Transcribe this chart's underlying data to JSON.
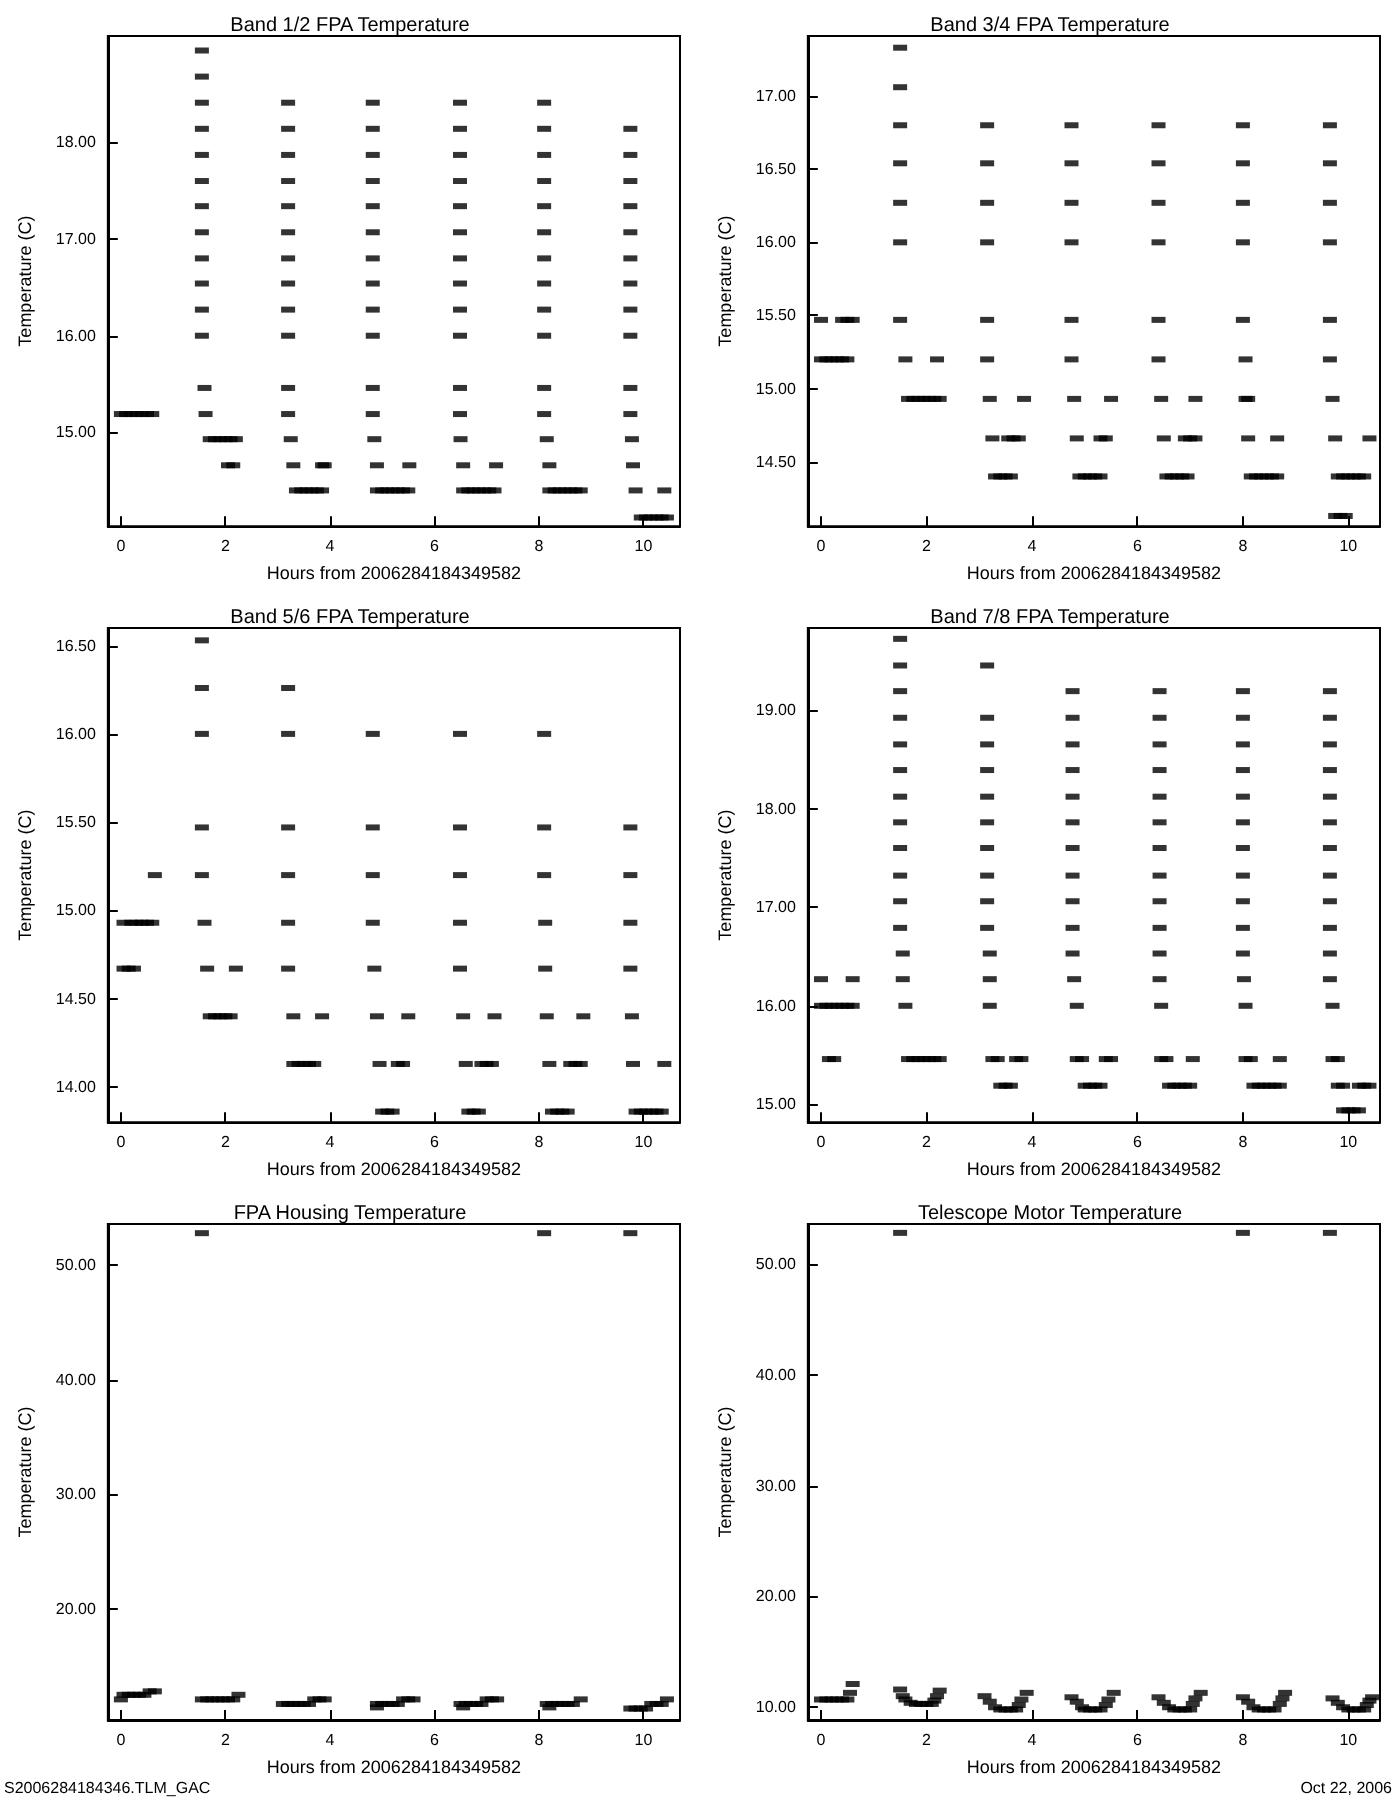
{
  "chart_data": [
    {
      "type": "scatter",
      "title": "Band 1/2 FPA Temperature",
      "xlabel": "Hours from 2006284184349582",
      "ylabel": "Temperature (C)",
      "marker": "square",
      "grid": false,
      "xlim": [
        -0.25,
        10.7
      ],
      "xticks": [
        0,
        2,
        4,
        6,
        8,
        10
      ],
      "ylim": [
        14.03,
        19.1
      ],
      "yticks": [
        {
          "value": 15,
          "label": "15.00"
        },
        {
          "value": 16,
          "label": "16.00"
        },
        {
          "value": 17,
          "label": "17.00"
        },
        {
          "value": 18,
          "label": "18.00"
        }
      ],
      "series": [
        {
          "color": "#000000",
          "x": [
            0,
            0.1,
            0.2,
            0.3,
            0.4,
            0.5,
            0.6,
            1.55,
            1.55,
            1.55,
            1.55,
            1.55,
            1.55,
            1.55,
            1.55,
            1.55,
            1.55,
            1.55,
            1.55,
            1.6,
            1.62,
            1.7,
            1.8,
            1.9,
            2.0,
            2.1,
            2.2,
            2.05,
            2.15,
            3.2,
            3.2,
            3.2,
            3.2,
            3.2,
            3.2,
            3.2,
            3.2,
            3.2,
            3.2,
            3.2,
            3.2,
            3.25,
            3.3,
            3.85,
            3.9,
            3.35,
            3.45,
            3.55,
            3.65,
            3.75,
            3.85,
            4.82,
            4.82,
            4.82,
            4.82,
            4.82,
            4.82,
            4.82,
            4.82,
            4.82,
            4.82,
            4.82,
            4.82,
            4.85,
            4.9,
            5.52,
            4.9,
            5.0,
            5.1,
            5.2,
            5.3,
            5.4,
            5.5,
            6.49,
            6.49,
            6.49,
            6.49,
            6.49,
            6.49,
            6.49,
            6.49,
            6.49,
            6.49,
            6.49,
            6.49,
            6.5,
            6.55,
            7.18,
            6.55,
            6.65,
            6.75,
            6.85,
            6.95,
            7.05,
            7.15,
            8.1,
            8.1,
            8.1,
            8.1,
            8.1,
            8.1,
            8.1,
            8.1,
            8.1,
            8.1,
            8.1,
            8.1,
            8.15,
            8.2,
            8.2,
            8.3,
            8.4,
            8.5,
            8.6,
            8.7,
            8.8,
            9.75,
            9.75,
            9.75,
            9.75,
            9.75,
            9.75,
            9.75,
            9.75,
            9.75,
            9.75,
            9.75,
            9.78,
            9.8,
            9.85,
            10.4,
            9.95,
            10.05,
            10.15,
            10.25,
            10.35,
            10.45
          ],
          "values": [
            15.19,
            15.19,
            15.19,
            15.19,
            15.19,
            15.19,
            15.19,
            18.95,
            18.68,
            18.41,
            18.14,
            17.87,
            17.6,
            17.34,
            17.07,
            16.8,
            16.54,
            16.27,
            16.0,
            15.46,
            15.19,
            14.93,
            14.93,
            14.93,
            14.93,
            14.93,
            14.93,
            14.66,
            14.66,
            18.41,
            18.14,
            17.87,
            17.6,
            17.34,
            17.07,
            16.8,
            16.54,
            16.27,
            16.0,
            15.46,
            15.19,
            14.93,
            14.66,
            14.66,
            14.66,
            14.4,
            14.4,
            14.4,
            14.4,
            14.4,
            14.4,
            18.41,
            18.14,
            17.87,
            17.6,
            17.34,
            17.07,
            16.8,
            16.54,
            16.27,
            16.0,
            15.46,
            15.19,
            14.93,
            14.66,
            14.66,
            14.4,
            14.4,
            14.4,
            14.4,
            14.4,
            14.4,
            14.4,
            18.41,
            18.14,
            17.87,
            17.6,
            17.34,
            17.07,
            16.8,
            16.54,
            16.27,
            16.0,
            15.46,
            15.19,
            14.93,
            14.66,
            14.66,
            14.4,
            14.4,
            14.4,
            14.4,
            14.4,
            14.4,
            14.4,
            18.41,
            18.14,
            17.87,
            17.6,
            17.34,
            17.07,
            16.8,
            16.54,
            16.27,
            16.0,
            15.46,
            15.19,
            14.93,
            14.66,
            14.4,
            14.4,
            14.4,
            14.4,
            14.4,
            14.4,
            14.4,
            18.14,
            17.87,
            17.6,
            17.34,
            17.07,
            16.8,
            16.54,
            16.27,
            16.0,
            15.46,
            15.19,
            14.93,
            14.66,
            14.4,
            14.4,
            14.12,
            14.12,
            14.12,
            14.12,
            14.12,
            14.12
          ]
        }
      ]
    },
    {
      "type": "scatter",
      "title": "Band 3/4 FPA Temperature",
      "xlabel": "Hours from 2006284184349582",
      "ylabel": "Temperature (C)",
      "marker": "square",
      "grid": false,
      "xlim": [
        -0.25,
        10.6
      ],
      "xticks": [
        0,
        2,
        4,
        6,
        8,
        10
      ],
      "ylim": [
        14.06,
        17.41
      ],
      "yticks": [
        {
          "value": 14.5,
          "label": "14.50"
        },
        {
          "value": 15,
          "label": "15.00"
        },
        {
          "value": 15.5,
          "label": "15.50"
        },
        {
          "value": 16,
          "label": "16.00"
        },
        {
          "value": 16.5,
          "label": "16.50"
        },
        {
          "value": 17,
          "label": "17.00"
        }
      ],
      "series": [
        {
          "color": "#000000",
          "x": [
            0,
            0.4,
            0.5,
            0.6,
            0,
            0.1,
            0.2,
            0.3,
            0.4,
            0.5,
            1.5,
            1.5,
            1.5,
            1.5,
            1.5,
            1.5,
            1.5,
            1.6,
            1.65,
            1.75,
            1.85,
            1.95,
            2.05,
            2.15,
            2.25,
            2.2,
            3.15,
            3.15,
            3.15,
            3.15,
            3.15,
            3.15,
            3.2,
            3.25,
            3.55,
            3.65,
            3.75,
            3.85,
            3.3,
            3.4,
            3.5,
            3.6,
            4.75,
            4.75,
            4.75,
            4.75,
            4.75,
            4.75,
            4.8,
            4.85,
            5.3,
            5.4,
            5.5,
            4.9,
            5.0,
            5.1,
            5.2,
            5.3,
            6.4,
            6.4,
            6.4,
            6.4,
            6.4,
            6.4,
            6.45,
            6.5,
            7.1,
            6.9,
            7.0,
            7.1,
            6.55,
            6.65,
            6.75,
            6.85,
            6.95,
            8.0,
            8.0,
            8.0,
            8.0,
            8.0,
            8.05,
            8.05,
            8.1,
            8.1,
            8.65,
            8.15,
            8.25,
            8.35,
            8.45,
            8.55,
            8.65,
            9.65,
            9.65,
            9.65,
            9.65,
            9.65,
            9.65,
            9.7,
            9.75,
            9.8,
            9.9,
            10.0,
            10.1,
            10.2,
            10.3,
            10.4,
            9.75,
            9.85,
            9.95
          ],
          "values": [
            15.47,
            15.47,
            15.47,
            15.47,
            15.2,
            15.2,
            15.2,
            15.2,
            15.2,
            15.2,
            17.33,
            17.06,
            16.8,
            16.54,
            16.27,
            16.0,
            15.47,
            15.2,
            14.93,
            14.93,
            14.93,
            14.93,
            14.93,
            14.93,
            14.93,
            15.2,
            16.8,
            16.54,
            16.27,
            16.0,
            15.47,
            15.2,
            14.93,
            14.66,
            14.66,
            14.66,
            14.66,
            14.93,
            14.4,
            14.4,
            14.4,
            14.4,
            16.8,
            16.54,
            16.27,
            16.0,
            15.47,
            15.2,
            14.93,
            14.66,
            14.66,
            14.66,
            14.93,
            14.4,
            14.4,
            14.4,
            14.4,
            14.4,
            16.8,
            16.54,
            16.27,
            16.0,
            15.47,
            15.2,
            14.93,
            14.66,
            14.93,
            14.66,
            14.66,
            14.66,
            14.4,
            14.4,
            14.4,
            14.4,
            14.4,
            16.8,
            16.54,
            16.27,
            16.0,
            15.47,
            15.2,
            14.93,
            14.93,
            14.66,
            14.66,
            14.4,
            14.4,
            14.4,
            14.4,
            14.4,
            14.4,
            16.8,
            16.54,
            16.27,
            16.0,
            15.47,
            15.2,
            14.93,
            14.66,
            14.4,
            14.4,
            14.4,
            14.4,
            14.4,
            14.4,
            14.66,
            14.13,
            14.13,
            14.13
          ]
        }
      ]
    },
    {
      "type": "scatter",
      "title": "Band 5/6 FPA Temperature",
      "xlabel": "Hours from 2006284184349582",
      "ylabel": "Temperature (C)",
      "marker": "square",
      "grid": false,
      "xlim": [
        -0.25,
        10.7
      ],
      "xticks": [
        0,
        2,
        4,
        6,
        8,
        10
      ],
      "ylim": [
        13.8,
        16.6
      ],
      "yticks": [
        {
          "value": 14,
          "label": "14.00"
        },
        {
          "value": 14.5,
          "label": "14.50"
        },
        {
          "value": 15,
          "label": "15.00"
        },
        {
          "value": 15.5,
          "label": "15.50"
        },
        {
          "value": 16,
          "label": "16.00"
        },
        {
          "value": 16.5,
          "label": "16.50"
        }
      ],
      "series": [
        {
          "color": "#000000",
          "x": [
            0.05,
            0.2,
            0.3,
            0.4,
            0.5,
            0.6,
            0.05,
            0.15,
            0.25,
            0.65,
            1.55,
            1.55,
            1.55,
            1.55,
            1.55,
            1.6,
            1.65,
            1.7,
            1.8,
            1.9,
            2.0,
            2.1,
            2.2,
            3.2,
            3.2,
            3.2,
            3.2,
            3.2,
            3.2,
            3.3,
            3.85,
            3.3,
            3.4,
            3.5,
            3.6,
            3.7,
            4.82,
            4.82,
            4.82,
            4.82,
            4.85,
            4.9,
            4.95,
            5.3,
            5.4,
            5.5,
            5.0,
            5.1,
            5.2,
            6.49,
            6.49,
            6.49,
            6.49,
            6.49,
            6.55,
            6.6,
            6.9,
            7.0,
            7.1,
            7.15,
            6.65,
            6.75,
            6.85,
            8.1,
            8.1,
            8.1,
            8.12,
            8.12,
            8.15,
            8.2,
            8.6,
            8.7,
            8.8,
            8.85,
            8.25,
            8.35,
            8.45,
            8.55,
            9.75,
            9.75,
            9.75,
            9.75,
            9.78,
            9.8,
            10.4,
            9.85,
            9.95,
            10.05,
            10.15,
            10.25,
            10.35
          ],
          "values": [
            14.93,
            14.93,
            14.93,
            14.93,
            14.93,
            14.93,
            14.67,
            14.67,
            14.67,
            15.2,
            16.53,
            16.26,
            16.0,
            15.47,
            15.2,
            14.93,
            14.67,
            14.4,
            14.4,
            14.4,
            14.4,
            14.4,
            14.67,
            16.26,
            16.0,
            15.47,
            15.2,
            14.93,
            14.67,
            14.4,
            14.4,
            14.13,
            14.13,
            14.13,
            14.13,
            14.13,
            16.0,
            15.47,
            15.2,
            14.93,
            14.67,
            14.4,
            14.13,
            14.13,
            14.13,
            14.4,
            13.86,
            13.86,
            13.86,
            16.0,
            15.47,
            15.2,
            14.93,
            14.67,
            14.4,
            14.13,
            14.13,
            14.13,
            14.13,
            14.4,
            13.86,
            13.86,
            13.86,
            16.0,
            15.47,
            15.2,
            14.93,
            14.67,
            14.4,
            14.13,
            14.13,
            14.13,
            14.13,
            14.4,
            13.86,
            13.86,
            13.86,
            13.86,
            15.47,
            15.2,
            14.93,
            14.67,
            14.4,
            14.13,
            14.13,
            13.86,
            13.86,
            13.86,
            13.86,
            13.86,
            13.86
          ]
        }
      ]
    },
    {
      "type": "scatter",
      "title": "Band 7/8 FPA Temperature",
      "xlabel": "Hours from 2006284184349582",
      "ylabel": "Temperature (C)",
      "marker": "square",
      "grid": false,
      "xlim": [
        -0.25,
        10.6
      ],
      "xticks": [
        0,
        2,
        4,
        6,
        8,
        10
      ],
      "ylim": [
        14.82,
        19.83
      ],
      "yticks": [
        {
          "value": 15,
          "label": "15.00"
        },
        {
          "value": 16,
          "label": "16.00"
        },
        {
          "value": 17,
          "label": "17.00"
        },
        {
          "value": 18,
          "label": "18.00"
        },
        {
          "value": 19,
          "label": "19.00"
        }
      ],
      "series": [
        {
          "color": "#000000",
          "x": [
            0,
            0.6,
            0,
            0.1,
            0.2,
            0.3,
            0.4,
            0.5,
            0.6,
            0.15,
            0.25,
            1.5,
            1.5,
            1.5,
            1.5,
            1.5,
            1.5,
            1.5,
            1.5,
            1.5,
            1.5,
            1.5,
            1.5,
            1.55,
            1.55,
            1.6,
            1.65,
            1.75,
            1.85,
            1.95,
            2.05,
            2.15,
            2.25,
            3.15,
            3.15,
            3.15,
            3.15,
            3.15,
            3.15,
            3.15,
            3.15,
            3.15,
            3.15,
            3.2,
            3.2,
            3.2,
            3.25,
            3.35,
            3.7,
            3.8,
            3.4,
            3.5,
            3.6,
            4.77,
            4.77,
            4.77,
            4.77,
            4.77,
            4.77,
            4.77,
            4.77,
            4.77,
            4.77,
            4.77,
            4.8,
            4.85,
            4.85,
            4.95,
            5.4,
            5.5,
            5.0,
            5.1,
            5.2,
            5.3,
            6.42,
            6.42,
            6.42,
            6.42,
            6.42,
            6.42,
            6.42,
            6.42,
            6.42,
            6.42,
            6.42,
            6.42,
            6.45,
            6.45,
            6.55,
            7.05,
            6.6,
            6.7,
            6.8,
            6.9,
            7.0,
            8.0,
            8.0,
            8.0,
            8.0,
            8.0,
            8.0,
            8.0,
            8.0,
            8.0,
            8.0,
            8.0,
            8.02,
            8.05,
            8.05,
            8.15,
            8.7,
            8.2,
            8.3,
            8.4,
            8.5,
            8.6,
            8.7,
            9.65,
            9.65,
            9.65,
            9.65,
            9.65,
            9.65,
            9.65,
            9.65,
            9.65,
            9.65,
            9.65,
            9.65,
            9.7,
            9.7,
            9.8,
            9.8,
            9.9,
            10.2,
            10.3,
            10.4,
            9.9,
            10.0,
            10.1,
            10.2
          ],
          "values": [
            16.27,
            16.27,
            16.0,
            16.0,
            16.0,
            16.0,
            16.0,
            16.0,
            16.0,
            15.46,
            15.46,
            19.72,
            19.45,
            19.19,
            18.92,
            18.65,
            18.39,
            18.12,
            17.86,
            17.6,
            17.32,
            17.06,
            16.79,
            16.53,
            16.27,
            16.0,
            15.46,
            15.46,
            15.46,
            15.46,
            15.46,
            15.46,
            15.46,
            19.45,
            18.92,
            18.65,
            18.39,
            18.12,
            17.86,
            17.6,
            17.32,
            17.06,
            16.79,
            16.53,
            16.27,
            16.0,
            15.46,
            15.46,
            15.46,
            15.46,
            15.19,
            15.19,
            15.19,
            19.19,
            18.92,
            18.65,
            18.39,
            18.12,
            17.86,
            17.6,
            17.32,
            17.06,
            16.79,
            16.53,
            16.27,
            16.0,
            15.46,
            15.46,
            15.46,
            15.46,
            15.19,
            15.19,
            15.19,
            15.19,
            19.19,
            18.92,
            18.65,
            18.39,
            18.12,
            17.86,
            17.6,
            17.32,
            17.06,
            16.79,
            16.53,
            16.27,
            16.0,
            15.46,
            15.46,
            15.46,
            15.19,
            15.19,
            15.19,
            15.19,
            15.19,
            19.19,
            18.92,
            18.65,
            18.39,
            18.12,
            17.86,
            17.6,
            17.32,
            17.06,
            16.79,
            16.53,
            16.27,
            16.0,
            15.46,
            15.46,
            15.46,
            15.19,
            15.19,
            15.19,
            15.19,
            15.19,
            15.19,
            19.19,
            18.92,
            18.65,
            18.39,
            18.12,
            17.86,
            17.6,
            17.32,
            17.06,
            16.79,
            16.53,
            16.27,
            16.0,
            15.46,
            15.46,
            15.19,
            15.19,
            15.19,
            15.19,
            15.19,
            14.94,
            14.94,
            14.94,
            14.94
          ]
        }
      ]
    },
    {
      "type": "scatter",
      "title": "FPA Housing Temperature",
      "xlabel": "Hours from 2006284184349582",
      "ylabel": "Temperature (C)",
      "marker": "square",
      "grid": false,
      "xlim": [
        -0.25,
        10.7
      ],
      "xticks": [
        0,
        2,
        4,
        6,
        8,
        10
      ],
      "ylim": [
        10.3,
        53.6
      ],
      "yticks": [
        {
          "value": 20,
          "label": "20.00"
        },
        {
          "value": 30,
          "label": "30.00"
        },
        {
          "value": 40,
          "label": "40.00"
        },
        {
          "value": 50,
          "label": "50.00"
        }
      ],
      "annotations": [
        "S2006284184346.TLM_GAC"
      ],
      "series": [
        {
          "color": "#000000",
          "x": [
            1.55,
            8.1,
            9.75,
            0,
            0.05,
            0.15,
            0.25,
            0.35,
            0.45,
            0.55,
            0.65,
            1.55,
            1.65,
            1.75,
            1.85,
            1.95,
            2.05,
            2.15,
            2.25,
            3.1,
            3.2,
            3.3,
            3.4,
            3.5,
            3.6,
            3.7,
            3.8,
            3.9,
            4.9,
            4.9,
            5.0,
            5.1,
            5.2,
            5.3,
            5.4,
            5.5,
            5.6,
            6.55,
            6.5,
            6.6,
            6.7,
            6.8,
            6.9,
            7.0,
            7.1,
            7.2,
            8.2,
            8.15,
            8.25,
            8.35,
            8.45,
            8.55,
            8.65,
            8.8,
            9.75,
            9.85,
            9.95,
            10.05,
            10.15,
            10.25,
            10.35,
            10.45
          ],
          "values": [
            52.8,
            52.8,
            52.8,
            12.1,
            12.5,
            12.5,
            12.5,
            12.5,
            12.5,
            12.8,
            12.8,
            12.1,
            12.1,
            12.1,
            12.1,
            12.1,
            12.1,
            12.1,
            12.5,
            11.7,
            11.7,
            11.7,
            11.7,
            11.7,
            11.7,
            12.1,
            12.1,
            12.1,
            11.4,
            11.7,
            11.7,
            11.7,
            11.7,
            11.7,
            12.1,
            12.1,
            12.1,
            11.4,
            11.7,
            11.7,
            11.7,
            11.7,
            11.7,
            12.1,
            12.1,
            12.1,
            11.4,
            11.7,
            11.7,
            11.7,
            11.7,
            11.7,
            11.7,
            12.1,
            11.3,
            11.3,
            11.3,
            11.3,
            11.7,
            11.7,
            11.7,
            12.1
          ]
        }
      ]
    },
    {
      "type": "scatter",
      "title": "Telescope Motor Temperature",
      "xlabel": "Hours from 2006284184349582",
      "ylabel": "Temperature (C)",
      "marker": "square",
      "grid": false,
      "xlim": [
        -0.25,
        10.6
      ],
      "xticks": [
        0,
        2,
        4,
        6,
        8,
        10
      ],
      "ylim": [
        8.85,
        53.6
      ],
      "yticks": [
        {
          "value": 10,
          "label": "10.00"
        },
        {
          "value": 20,
          "label": "20.00"
        },
        {
          "value": 30,
          "label": "30.00"
        },
        {
          "value": 40,
          "label": "40.00"
        },
        {
          "value": 50,
          "label": "50.00"
        }
      ],
      "annotations": [
        "Oct 22, 2006"
      ],
      "series": [
        {
          "color": "#000000",
          "x": [
            1.5,
            8.0,
            9.65,
            0,
            0.1,
            0.2,
            0.3,
            0.4,
            0.5,
            0.55,
            0.6,
            1.5,
            1.55,
            1.6,
            1.7,
            1.8,
            1.9,
            2.0,
            2.1,
            2.15,
            2.2,
            2.25,
            3.1,
            3.2,
            3.3,
            3.4,
            3.5,
            3.6,
            3.7,
            3.75,
            3.8,
            3.9,
            4.75,
            4.85,
            4.95,
            5.0,
            5.1,
            5.2,
            5.3,
            5.4,
            5.45,
            5.55,
            6.4,
            6.5,
            6.6,
            6.7,
            6.8,
            6.9,
            7.0,
            7.05,
            7.1,
            7.2,
            8.0,
            8.1,
            8.2,
            8.3,
            8.4,
            8.5,
            8.6,
            8.7,
            8.75,
            8.8,
            9.7,
            9.8,
            9.9,
            10.0,
            10.1,
            10.2,
            10.3,
            10.35,
            10.4,
            10.45
          ],
          "values": [
            52.8,
            52.8,
            52.8,
            10.7,
            10.7,
            10.7,
            10.7,
            10.7,
            10.7,
            11.3,
            12.1,
            11.6,
            11.0,
            10.7,
            10.4,
            10.3,
            10.3,
            10.3,
            10.3,
            10.6,
            11.0,
            11.5,
            11.0,
            10.5,
            10.0,
            9.8,
            9.8,
            9.8,
            9.8,
            10.2,
            10.7,
            11.3,
            10.9,
            10.5,
            10.0,
            9.8,
            9.8,
            9.8,
            9.8,
            10.2,
            10.7,
            11.3,
            10.9,
            10.4,
            10.0,
            9.8,
            9.8,
            9.8,
            9.8,
            10.3,
            10.8,
            11.3,
            10.9,
            10.5,
            10.0,
            9.8,
            9.8,
            9.8,
            9.8,
            10.3,
            10.8,
            11.3,
            10.8,
            10.4,
            10.0,
            9.8,
            9.8,
            9.8,
            9.8,
            10.2,
            10.6,
            10.9
          ]
        }
      ]
    }
  ]
}
